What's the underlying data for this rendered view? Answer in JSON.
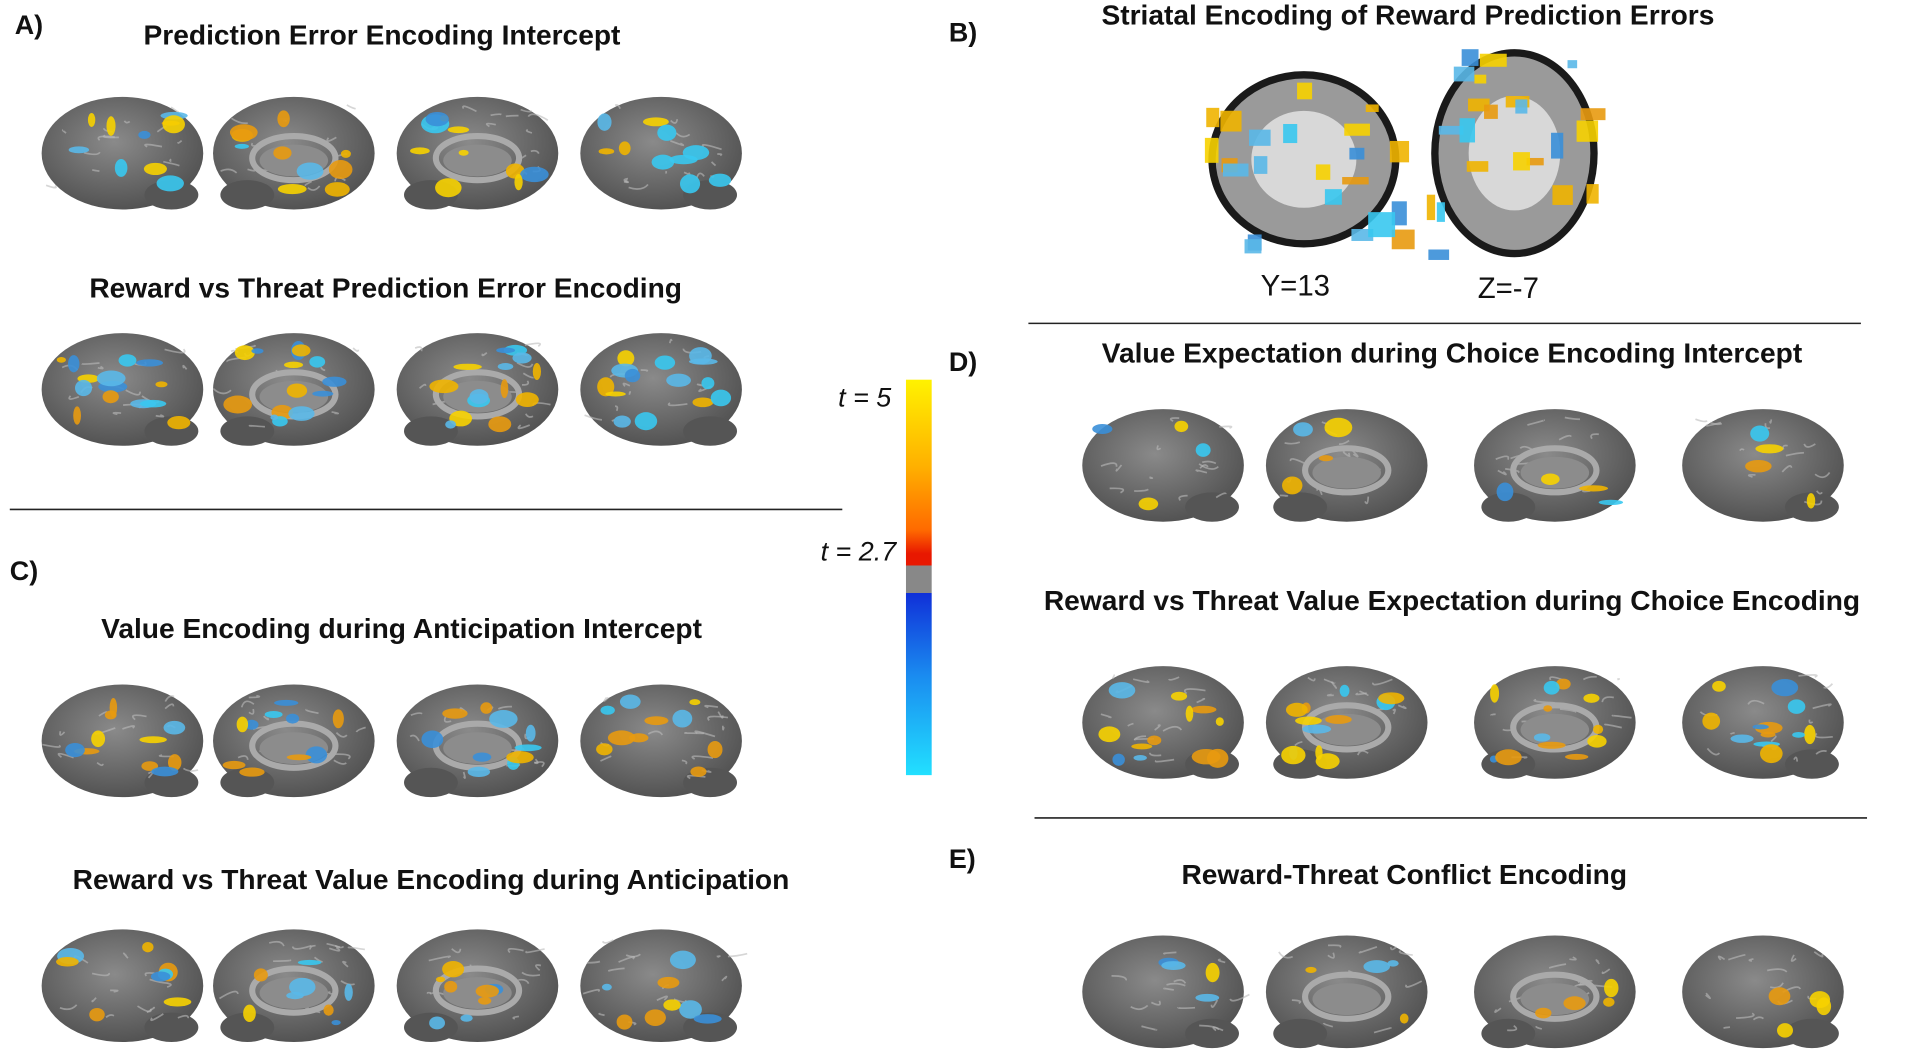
{
  "panels": {
    "A": {
      "label": "A)",
      "titles": [
        "Prediction Error Encoding Intercept",
        "Reward vs Threat Prediction Error Encoding"
      ]
    },
    "B": {
      "label": "B)",
      "title": "Striatal Encoding of Reward Prediction Errors",
      "slice_labels": [
        "Y=13",
        "Z=-7"
      ]
    },
    "C": {
      "label": "C)",
      "titles": [
        "Value Encoding during Anticipation Intercept",
        "Reward vs Threat Value Encoding during Anticipation"
      ]
    },
    "D": {
      "label": "D)",
      "titles": [
        "Value Expectation during Choice Encoding Intercept",
        "Reward vs Threat Value Expectation during Choice Encoding"
      ]
    },
    "E": {
      "label": "E)",
      "titles": [
        "Reward-Threat Conflict Encoding"
      ]
    }
  },
  "colorbar": {
    "top_label": "t = 5",
    "threshold_label": "t = 2.7"
  }
}
